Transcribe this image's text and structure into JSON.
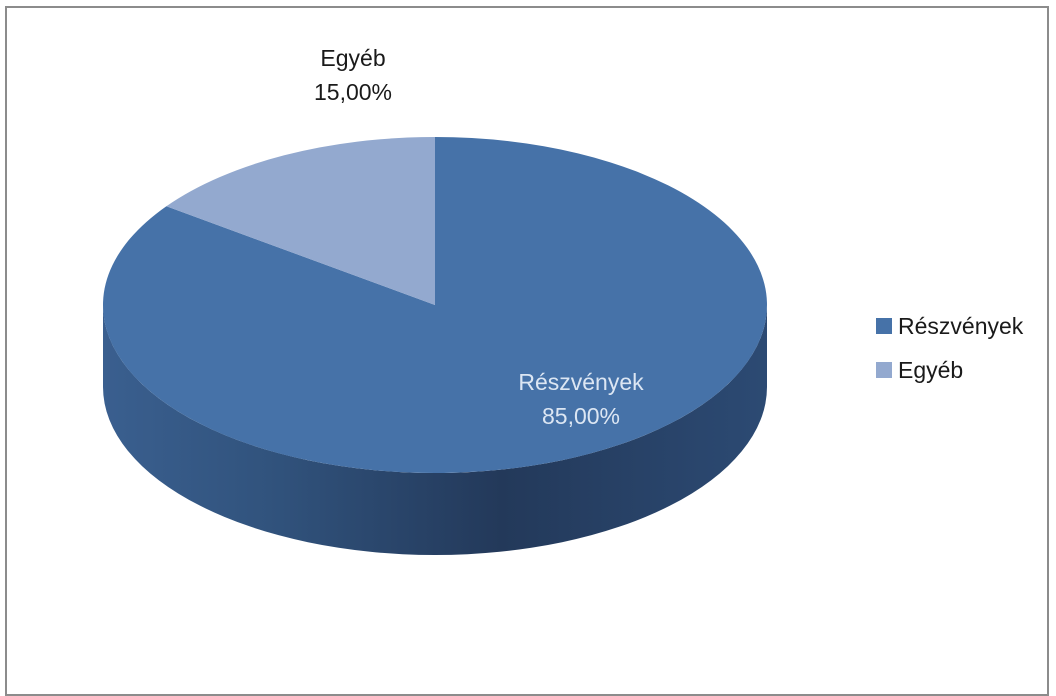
{
  "chart_data": {
    "type": "pie",
    "style": "3d",
    "slices": [
      {
        "label": "Részvények",
        "value": 85.0,
        "value_label": "85,00%",
        "color": "#4672a8"
      },
      {
        "label": "Egyéb",
        "value": 15.0,
        "value_label": "15,00%",
        "color": "#93a9cf"
      }
    ],
    "legend_position": "right",
    "legend": [
      "Részvények",
      "Egyéb"
    ]
  }
}
